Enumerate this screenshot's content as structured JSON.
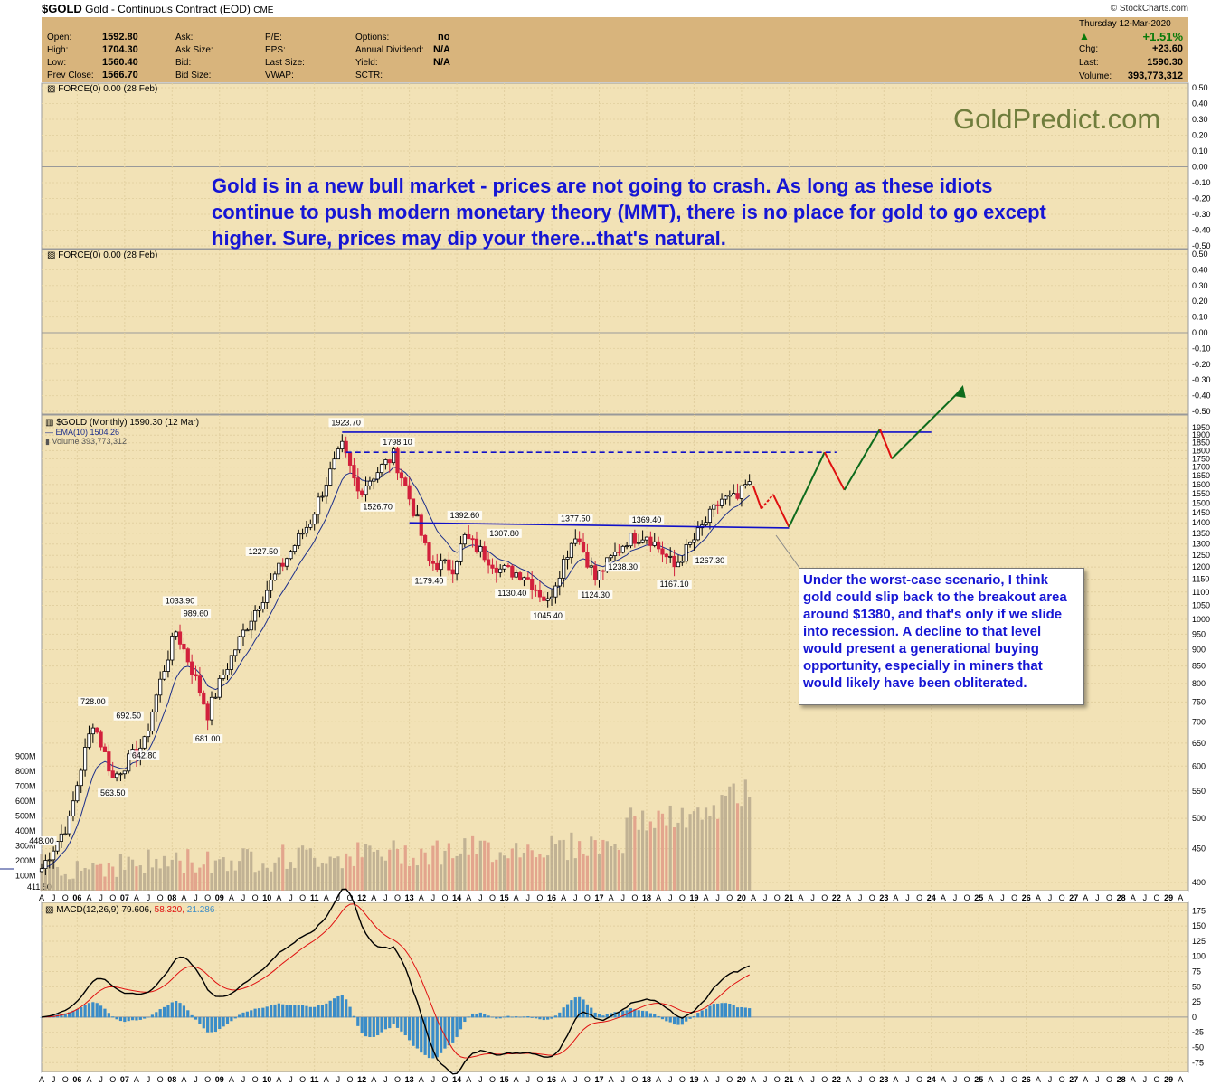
{
  "header": {
    "symbol": "$GOLD",
    "description": "Gold - Continuous Contract (EOD)",
    "exchange": "CME",
    "credit": "© StockCharts.com"
  },
  "quote": {
    "labels": {
      "open": "Open:",
      "high": "High:",
      "low": "Low:",
      "prev_close": "Prev Close:",
      "ask": "Ask:",
      "ask_size": "Ask Size:",
      "bid": "Bid:",
      "bid_size": "Bid Size:",
      "pe": "P/E:",
      "eps": "EPS:",
      "last_size": "Last Size:",
      "vwap": "VWAP:",
      "options": "Options:",
      "annual_dividend": "Annual Dividend:",
      "yield": "Yield:",
      "sctr": "SCTR:"
    },
    "values": {
      "open": "1592.80",
      "high": "1704.30",
      "low": "1560.40",
      "prev_close": "1566.70",
      "options": "no",
      "annual_dividend": "N/A",
      "yield": "N/A"
    },
    "right": {
      "date": "Thursday  12-Mar-2020",
      "pct": "+1.51%",
      "chg_label": "Chg:",
      "chg": "+23.60",
      "last_label": "Last:",
      "last": "1590.30",
      "volume_label": "Volume:",
      "volume": "393,773,312"
    }
  },
  "panels": {
    "force1": "FORCE(0) 0.00 (28 Feb)",
    "force2": "FORCE(0) 0.00 (28 Feb)",
    "price": "$GOLD (Monthly) 1590.30 (12 Mar)",
    "ema": "EMA(10) 1504.26",
    "volume": "Volume 393,773,312",
    "macd": "MACD(12,26,9) 79.606,",
    "macd_signal": "58.320,",
    "macd_hist": "21.286"
  },
  "annotations": {
    "brand": "GoldPredict.com",
    "main_note": "Gold is in a new bull market - prices are not going to crash. As long as these idiots continue to push modern monetary theory (MMT), there is no place for gold to go except higher. Sure, prices may dip your there...that's natural.",
    "callout": "Under the worst-case scenario, I think gold could slip back to the breakout area around $1380, and that's only if we slide into recession. A decline to that level would present a generational buying opportunity, especially in miners that would likely have been obliterated."
  },
  "colors": {
    "panel_bg": "#f2e2b6",
    "quote_bg": "#d8b47c",
    "up": "#ffffff",
    "down": "#d2203c",
    "ema": "#1c2e8a",
    "lines": "#1010c8",
    "projection_up": "#0e6b1c",
    "projection_down": "#e01010",
    "macd": "#000000",
    "macd_signal": "#e01010",
    "macd_hist": "#3a8cc8",
    "note_text": "#1515d4"
  },
  "chart_data": {
    "type": "candlestick",
    "title": "$GOLD (Monthly) 1590.30 (12 Mar)",
    "price_axis": {
      "scale": "log",
      "ticks": [
        400,
        450,
        500,
        550,
        600,
        650,
        700,
        750,
        800,
        850,
        900,
        950,
        1000,
        1050,
        1100,
        1150,
        1200,
        1250,
        1300,
        1350,
        1400,
        1450,
        1500,
        1550,
        1600,
        1650,
        1700,
        1750,
        1800,
        1850,
        1900,
        1950
      ]
    },
    "volume_axis": {
      "ticks": [
        "100M",
        "200M",
        "300M",
        "400M",
        "500M",
        "600M",
        "700M",
        "800M",
        "900M"
      ]
    },
    "force_axis": {
      "ticks": [
        "0.50",
        "0.40",
        "0.30",
        "0.20",
        "0.10",
        "0.00",
        "-0.10",
        "-0.20",
        "-0.30",
        "-0.40",
        "-0.50"
      ]
    },
    "macd_axis": {
      "ticks": [
        175,
        150,
        125,
        100,
        75,
        50,
        25,
        0,
        -25,
        -50,
        -75
      ]
    },
    "time_axis": {
      "start": "2005-04",
      "end": "2029-06",
      "year_labels": [
        "06",
        "07",
        "08",
        "09",
        "10",
        "11",
        "12",
        "13",
        "14",
        "15",
        "16",
        "17",
        "18",
        "19",
        "20",
        "21",
        "22",
        "23",
        "24",
        "25",
        "26",
        "27",
        "28",
        "29"
      ],
      "intra_labels": [
        "A",
        "J",
        "O"
      ]
    },
    "price_keypoints": [
      [
        "2005-04",
        420
      ],
      [
        "2005-11",
        495
      ],
      [
        "2006-05",
        700
      ],
      [
        "2006-10",
        575
      ],
      [
        "2007-06",
        650
      ],
      [
        "2008-02",
        960
      ],
      [
        "2008-10",
        720
      ],
      [
        "2009-06",
        930
      ],
      [
        "2010-06",
        1240
      ],
      [
        "2010-12",
        1410
      ],
      [
        "2011-08",
        1820
      ],
      [
        "2011-12",
        1560
      ],
      [
        "2012-09",
        1770
      ],
      [
        "2013-06",
        1220
      ],
      [
        "2013-12",
        1200
      ],
      [
        "2014-03",
        1330
      ],
      [
        "2014-12",
        1190
      ],
      [
        "2015-06",
        1170
      ],
      [
        "2015-12",
        1060
      ],
      [
        "2016-07",
        1350
      ],
      [
        "2016-12",
        1150
      ],
      [
        "2017-08",
        1320
      ],
      [
        "2018-01",
        1345
      ],
      [
        "2018-08",
        1200
      ],
      [
        "2019-01",
        1320
      ],
      [
        "2019-08",
        1520
      ],
      [
        "2019-12",
        1520
      ],
      [
        "2020-02",
        1590
      ],
      [
        "2020-03",
        1590
      ]
    ],
    "labeled_extremes": [
      {
        "label": "448.00",
        "date": "2005-04",
        "price": 448
      },
      {
        "label": "411.50",
        "date": "2005-05",
        "price": 411.5
      },
      {
        "label": "728.00",
        "date": "2006-05",
        "price": 728
      },
      {
        "label": "563.50",
        "date": "2006-10",
        "price": 563.5
      },
      {
        "label": "692.50",
        "date": "2007-02",
        "price": 692.5
      },
      {
        "label": "642.80",
        "date": "2007-06",
        "price": 642.8
      },
      {
        "label": "1033.90",
        "date": "2008-03",
        "price": 1033.9
      },
      {
        "label": "989.60",
        "date": "2008-07",
        "price": 989.6
      },
      {
        "label": "681.00",
        "date": "2008-10",
        "price": 681
      },
      {
        "label": "1227.50",
        "date": "2009-12",
        "price": 1227.5
      },
      {
        "label": "1923.70",
        "date": "2011-09",
        "price": 1923.7
      },
      {
        "label": "1526.70",
        "date": "2012-05",
        "price": 1526.7
      },
      {
        "label": "1798.10",
        "date": "2012-10",
        "price": 1798.1
      },
      {
        "label": "1179.40",
        "date": "2013-06",
        "price": 1179.4
      },
      {
        "label": "1392.60",
        "date": "2014-03",
        "price": 1392.6
      },
      {
        "label": "1307.80",
        "date": "2015-01",
        "price": 1307.8
      },
      {
        "label": "1130.40",
        "date": "2015-03",
        "price": 1130.4
      },
      {
        "label": "1045.40",
        "date": "2015-12",
        "price": 1045.4
      },
      {
        "label": "1377.50",
        "date": "2016-07",
        "price": 1377.5
      },
      {
        "label": "1124.30",
        "date": "2016-12",
        "price": 1124.3
      },
      {
        "label": "1238.30",
        "date": "2017-07",
        "price": 1238.3
      },
      {
        "label": "1369.40",
        "date": "2018-01",
        "price": 1369.4
      },
      {
        "label": "1167.10",
        "date": "2018-08",
        "price": 1167.1
      },
      {
        "label": "1267.30",
        "date": "2019-05",
        "price": 1267.3
      }
    ],
    "lines": [
      {
        "kind": "resistance",
        "from": [
          "2011-08",
          1920
        ],
        "to": [
          "2024-01",
          1920
        ]
      },
      {
        "kind": "resistance_dashed",
        "from": [
          "2011-09",
          1790
        ],
        "to": [
          "2022-01",
          1790
        ]
      },
      {
        "kind": "support",
        "from": [
          "2013-01",
          1400
        ],
        "to": [
          "2021-01",
          1375
        ]
      }
    ],
    "projection": [
      [
        "2021-01",
        1380
      ],
      [
        "2021-10",
        1790
      ],
      [
        "2022-03",
        1570
      ],
      [
        "2022-12",
        1940
      ],
      [
        "2023-03",
        1750
      ],
      [
        "2024-09",
        2240
      ]
    ],
    "projection_dip": [
      [
        "2020-04",
        1590
      ],
      [
        "2020-06",
        1470
      ],
      [
        "2020-09",
        1545
      ],
      [
        "2021-01",
        1380
      ]
    ]
  }
}
